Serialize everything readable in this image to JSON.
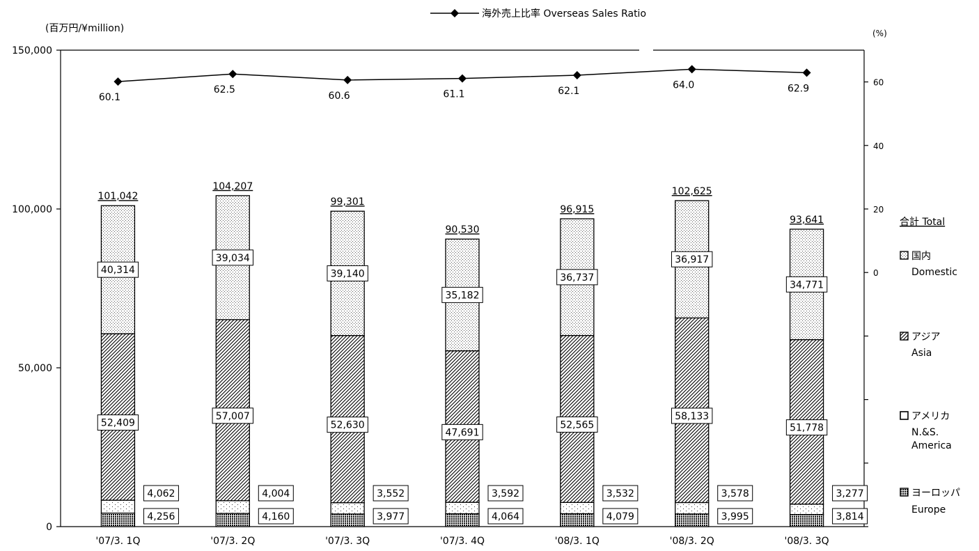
{
  "chart_data": {
    "type": "bar",
    "stacked": true,
    "unit_left": "(百万円/¥million)",
    "unit_right": "(%)",
    "line_legend": "海外売上比率  Overseas Sales Ratio",
    "categories": [
      "'07/3. 1Q",
      "'07/3. 2Q",
      "'07/3. 3Q",
      "'07/3. 4Q",
      "'08/3. 1Q",
      "'08/3. 2Q",
      "'08/3. 3Q"
    ],
    "series": [
      {
        "key": "europe",
        "values": [
          4256,
          4160,
          3977,
          4064,
          4079,
          3995,
          3814
        ]
      },
      {
        "key": "america",
        "values": [
          4062,
          4004,
          3552,
          3592,
          3532,
          3578,
          3277
        ]
      },
      {
        "key": "asia",
        "values": [
          52409,
          57007,
          52630,
          47691,
          52565,
          58133,
          51778
        ]
      },
      {
        "key": "domestic",
        "values": [
          40314,
          39034,
          39140,
          35182,
          36737,
          36917,
          34771
        ]
      }
    ],
    "totals": [
      101042,
      104207,
      99301,
      90530,
      96915,
      102625,
      93641
    ],
    "ratio": [
      60.1,
      62.5,
      60.6,
      61.1,
      62.1,
      64.0,
      62.9
    ],
    "y_left": {
      "min": 0,
      "max": 150000,
      "ticks": [
        0,
        50000,
        100000,
        150000
      ],
      "tick_labels": [
        "0",
        "50,000",
        "100,000",
        "150,000"
      ]
    },
    "y_right": {
      "min": -80,
      "max": 70,
      "ticks": [
        -80,
        -60,
        -40,
        -20,
        0,
        20,
        40,
        60
      ],
      "tick_labels": [
        "",
        "",
        "",
        "",
        "0",
        "20",
        "40",
        "60"
      ]
    },
    "labels": {
      "europe": [
        "4,256",
        "4,160",
        "3,977",
        "4,064",
        "4,079",
        "3,995",
        "3,814"
      ],
      "america": [
        "4,062",
        "4,004",
        "3,552",
        "3,592",
        "3,532",
        "3,578",
        "3,277"
      ],
      "asia": [
        "52,409",
        "57,007",
        "52,630",
        "47,691",
        "52,565",
        "58,133",
        "51,778"
      ],
      "domestic": [
        "40,314",
        "39,034",
        "39,140",
        "35,182",
        "36,737",
        "36,917",
        "34,771"
      ],
      "totals": [
        "101,042",
        "104,207",
        "99,301",
        "90,530",
        "96,915",
        "102,625",
        "93,641"
      ],
      "ratio": [
        "60.1",
        "62.5",
        "60.6",
        "61.1",
        "62.1",
        "64.0",
        "62.9"
      ]
    },
    "legend": {
      "total_label": "合計 Total",
      "items": [
        {
          "key": "domestic",
          "jp": "国内",
          "en": [
            "Domestic"
          ]
        },
        {
          "key": "asia",
          "jp": "アジア",
          "en": [
            "Asia"
          ]
        },
        {
          "key": "america",
          "jp": "アメリカ",
          "en": [
            "N.&S.",
            "America"
          ]
        },
        {
          "key": "europe",
          "jp": "ヨーロッパ",
          "en": [
            "Europe"
          ]
        }
      ]
    },
    "grid": false,
    "line_color": "#000000"
  }
}
